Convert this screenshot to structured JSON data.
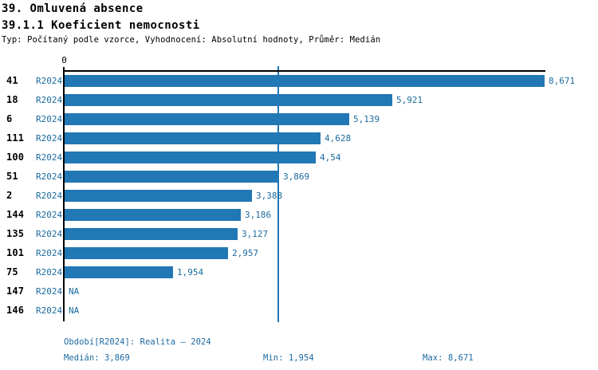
{
  "header": {
    "title1": "39. Omluvená absence",
    "title2": "39.1.1 Koeficient nemocnosti",
    "subtitle": "Typ: Počítaný podle vzorce, Vyhodnocení: Absolutní hodnoty, Průměr: Medián"
  },
  "chart_data": {
    "type": "bar",
    "orientation": "horizontal",
    "title": "39.1.1 Koeficient nemocnosti",
    "axis": {
      "origin_label": "0",
      "min": 0,
      "max": 8.671,
      "median": 3.869,
      "grid": "median-line-only"
    },
    "series_name": "R2024",
    "rows": [
      {
        "id": "41",
        "series": "R2024",
        "value": 8.671,
        "label": "8,671"
      },
      {
        "id": "18",
        "series": "R2024",
        "value": 5.921,
        "label": "5,921"
      },
      {
        "id": "6",
        "series": "R2024",
        "value": 5.139,
        "label": "5,139"
      },
      {
        "id": "111",
        "series": "R2024",
        "value": 4.628,
        "label": "4,628"
      },
      {
        "id": "100",
        "series": "R2024",
        "value": 4.54,
        "label": "4,54"
      },
      {
        "id": "51",
        "series": "R2024",
        "value": 3.869,
        "label": "3,869"
      },
      {
        "id": "2",
        "series": "R2024",
        "value": 3.388,
        "label": "3,388"
      },
      {
        "id": "144",
        "series": "R2024",
        "value": 3.186,
        "label": "3,186"
      },
      {
        "id": "135",
        "series": "R2024",
        "value": 3.127,
        "label": "3,127"
      },
      {
        "id": "101",
        "series": "R2024",
        "value": 2.957,
        "label": "2,957"
      },
      {
        "id": "75",
        "series": "R2024",
        "value": 1.954,
        "label": "1,954"
      },
      {
        "id": "147",
        "series": "R2024",
        "value": null,
        "label": "NA"
      },
      {
        "id": "146",
        "series": "R2024",
        "value": null,
        "label": "NA"
      }
    ],
    "colors": {
      "bar": "#2277b5",
      "text_blue": "#1b6a9e",
      "axis": "#000000"
    }
  },
  "footer": {
    "period": "Období[R2024]: Realita – 2024",
    "median": "Medián: 3,869",
    "min": "Min: 1,954",
    "max": "Max: 8,671"
  }
}
